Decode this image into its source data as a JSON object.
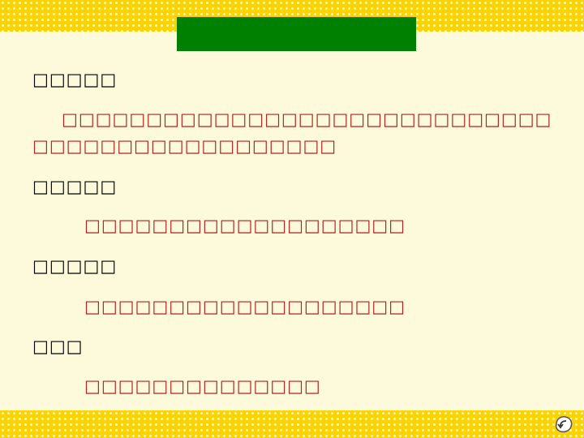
{
  "slide": {
    "title": "",
    "sections": [
      {
        "label": "□□□□□",
        "lines": [
          "□□□□□□□□□□□□□□□□□□□□□□□□□□□□□",
          "□□□□□□□□□□□□□□□□□□"
        ]
      },
      {
        "label": "□□□□□",
        "lines": [
          "□□□□□□□□□□□□□□□□□□□"
        ]
      },
      {
        "label": "□□□□□",
        "lines": [
          "□□□□□□□□□□□□□□□□□□□"
        ]
      },
      {
        "label": "□□□",
        "lines": [
          "□□□□□□□□□□□□□□"
        ]
      }
    ]
  },
  "colors": {
    "background": "#fdfadb",
    "band": "#fbd400",
    "title_box": "#008000",
    "label_text": "#000000",
    "answer_text": "#b22222"
  },
  "icons": {
    "nav": "return-arrow-icon"
  }
}
